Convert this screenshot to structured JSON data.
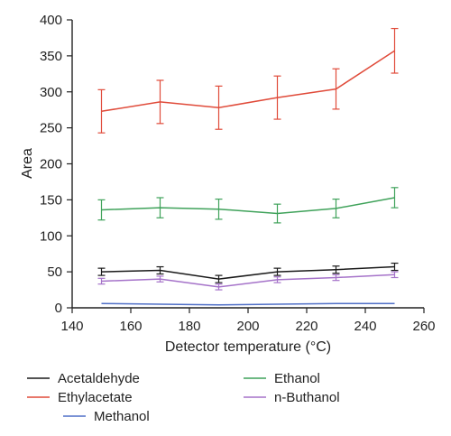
{
  "chart_data": {
    "type": "line",
    "xlabel": "Detector temperature (°C)",
    "ylabel": "Area",
    "xlim": [
      140,
      260
    ],
    "ylim": [
      0,
      400
    ],
    "xticks": [
      "140",
      "160",
      "180",
      "200",
      "220",
      "240",
      "260"
    ],
    "yticks": [
      "0",
      "50",
      "100",
      "150",
      "200",
      "250",
      "300",
      "350",
      "400"
    ],
    "x": [
      150,
      170,
      190,
      210,
      230,
      250
    ],
    "grid": false,
    "legend_position": "bottom",
    "series": [
      {
        "name": "Acetaldehyde",
        "color": "#1a1a1a",
        "values": [
          50,
          52,
          40,
          50,
          53,
          57
        ],
        "errors": [
          5,
          5,
          5,
          5,
          5,
          5
        ]
      },
      {
        "name": "Ethylacetate",
        "color": "#e04b3a",
        "values": [
          273,
          286,
          278,
          292,
          304,
          357
        ],
        "errors": [
          30,
          30,
          30,
          30,
          28,
          31
        ]
      },
      {
        "name": "Methanol",
        "color": "#4f6fc7",
        "values": [
          6,
          5,
          4,
          5,
          6,
          6
        ],
        "errors": [
          0,
          0,
          0,
          0,
          0,
          0
        ]
      },
      {
        "name": "Ethanol",
        "color": "#3fa25a",
        "values": [
          136,
          139,
          137,
          131,
          138,
          153
        ],
        "errors": [
          14,
          14,
          14,
          13,
          13,
          14
        ]
      },
      {
        "name": "n-Buthanol",
        "color": "#a572c9",
        "values": [
          37,
          40,
          29,
          39,
          42,
          46
        ],
        "errors": [
          4,
          4,
          4,
          4,
          4,
          4
        ]
      }
    ]
  }
}
